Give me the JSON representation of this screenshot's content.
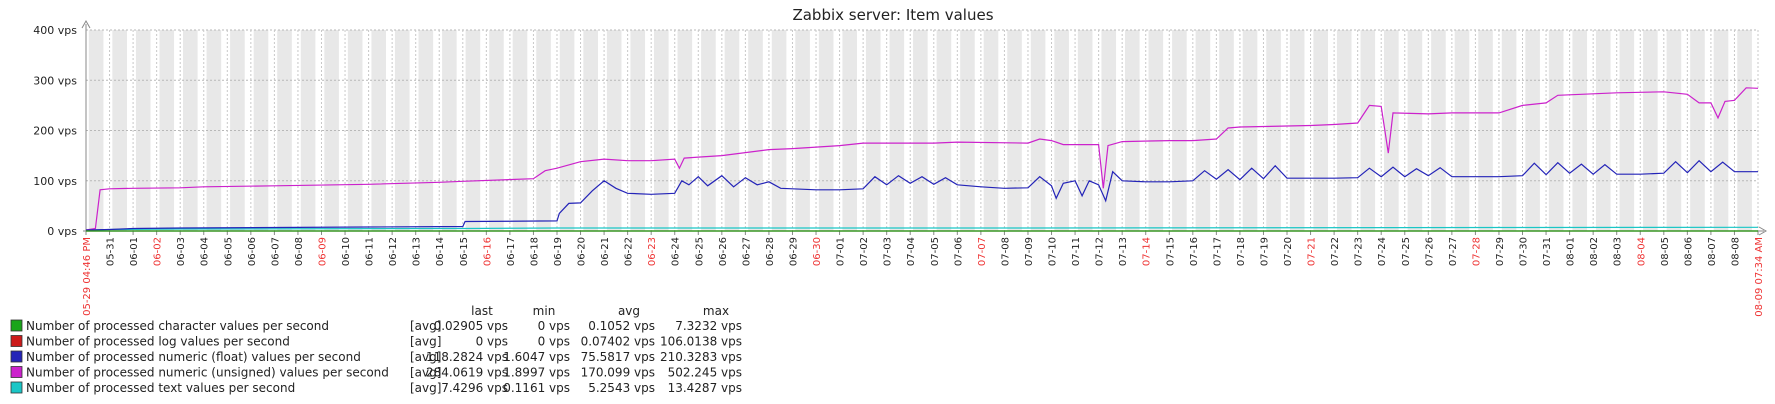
{
  "chart_data": {
    "type": "line",
    "title": "Zabbix server: Item values",
    "y_unit": "vps",
    "ylim": [
      0,
      400
    ],
    "y_ticks": [
      "0 vps",
      "100 vps",
      "200 vps",
      "300 vps",
      "400 vps"
    ],
    "x_start_label": "05-29 04:46 PM",
    "x_end_label": "08-09 07:34 AM",
    "x_day_labels": [
      "05-31",
      "06-01",
      "06-02",
      "06-03",
      "06-04",
      "06-05",
      "06-06",
      "06-07",
      "06-08",
      "06-09",
      "06-10",
      "06-11",
      "06-12",
      "06-13",
      "06-14",
      "06-15",
      "06-16",
      "06-17",
      "06-18",
      "06-19",
      "06-20",
      "06-21",
      "06-22",
      "06-23",
      "06-24",
      "06-25",
      "06-26",
      "06-27",
      "06-28",
      "06-29",
      "06-30",
      "07-01",
      "07-02",
      "07-03",
      "07-04",
      "07-05",
      "07-06",
      "07-07",
      "07-08",
      "07-09",
      "07-10",
      "07-11",
      "07-12",
      "07-13",
      "07-14",
      "07-15",
      "07-16",
      "07-17",
      "07-18",
      "07-19",
      "07-20",
      "07-21",
      "07-22",
      "07-23",
      "07-24",
      "07-25",
      "07-26",
      "07-27",
      "07-28",
      "07-29",
      "07-30",
      "07-31",
      "08-01",
      "08-02",
      "08-03",
      "08-04",
      "08-05",
      "08-06",
      "08-07",
      "08-08"
    ],
    "x_red_labels": [
      "06-02",
      "06-09",
      "06-16",
      "06-23",
      "06-30",
      "07-07",
      "07-14",
      "07-21",
      "07-28",
      "08-04"
    ],
    "stat_headers": [
      "last",
      "min",
      "avg",
      "max"
    ],
    "series": [
      {
        "name": "Number of processed character values per second",
        "func": "[avg]",
        "color": "#1aa51a",
        "last": "0.02905 vps",
        "min": "0 vps",
        "avg": "0.1052 vps",
        "max": "7.3232 vps",
        "points": [
          [
            0,
            0
          ],
          [
            71,
            0
          ]
        ]
      },
      {
        "name": "Number of processed log values per second",
        "func": "[avg]",
        "color": "#cc1a1a",
        "last": "0 vps",
        "min": "0 vps",
        "avg": "0.07402 vps",
        "max": "106.0138 vps",
        "points": [
          [
            0,
            0
          ],
          [
            71,
            0
          ]
        ]
      },
      {
        "name": "Number of processed numeric (float) values per second",
        "func": "[avg]",
        "color": "#2424b8",
        "last": "118.2824 vps",
        "min": "1.6047 vps",
        "avg": "75.5817 vps",
        "max": "210.3283 vps",
        "points": [
          [
            0,
            2
          ],
          [
            1,
            3
          ],
          [
            2,
            5
          ],
          [
            4,
            6
          ],
          [
            8,
            7
          ],
          [
            12,
            8
          ],
          [
            16,
            9
          ],
          [
            16.1,
            19
          ],
          [
            20,
            20
          ],
          [
            20.1,
            35
          ],
          [
            20.5,
            55
          ],
          [
            21,
            56
          ],
          [
            21.5,
            80
          ],
          [
            22,
            100
          ],
          [
            22.5,
            85
          ],
          [
            23,
            75
          ],
          [
            24,
            73
          ],
          [
            25,
            75
          ],
          [
            25.3,
            100
          ],
          [
            25.6,
            92
          ],
          [
            26,
            108
          ],
          [
            26.4,
            90
          ],
          [
            27,
            110
          ],
          [
            27.5,
            88
          ],
          [
            28,
            106
          ],
          [
            28.5,
            92
          ],
          [
            29,
            98
          ],
          [
            29.5,
            85
          ],
          [
            30,
            84
          ],
          [
            31,
            82
          ],
          [
            32,
            82
          ],
          [
            33,
            84
          ],
          [
            33.5,
            108
          ],
          [
            34,
            92
          ],
          [
            34.5,
            110
          ],
          [
            35,
            95
          ],
          [
            35.5,
            108
          ],
          [
            36,
            93
          ],
          [
            36.5,
            106
          ],
          [
            37,
            92
          ],
          [
            38,
            88
          ],
          [
            39,
            85
          ],
          [
            40,
            86
          ],
          [
            40.5,
            108
          ],
          [
            41,
            90
          ],
          [
            41.2,
            65
          ],
          [
            41.5,
            95
          ],
          [
            42,
            100
          ],
          [
            42.3,
            70
          ],
          [
            42.6,
            100
          ],
          [
            43,
            92
          ],
          [
            43.3,
            60
          ],
          [
            43.6,
            118
          ],
          [
            44,
            100
          ],
          [
            45,
            98
          ],
          [
            46,
            98
          ],
          [
            47,
            100
          ],
          [
            47.5,
            120
          ],
          [
            48,
            103
          ],
          [
            48.5,
            122
          ],
          [
            49,
            102
          ],
          [
            49.5,
            125
          ],
          [
            50,
            104
          ],
          [
            50.5,
            130
          ],
          [
            51,
            105
          ],
          [
            52,
            105
          ],
          [
            53,
            105
          ],
          [
            54,
            106
          ],
          [
            54.5,
            125
          ],
          [
            55,
            108
          ],
          [
            55.5,
            127
          ],
          [
            56,
            108
          ],
          [
            56.5,
            124
          ],
          [
            57,
            110
          ],
          [
            57.5,
            126
          ],
          [
            58,
            108
          ],
          [
            59,
            108
          ],
          [
            60,
            108
          ],
          [
            61,
            110
          ],
          [
            61.5,
            135
          ],
          [
            62,
            112
          ],
          [
            62.5,
            136
          ],
          [
            63,
            115
          ],
          [
            63.5,
            133
          ],
          [
            64,
            113
          ],
          [
            64.5,
            132
          ],
          [
            65,
            113
          ],
          [
            66,
            113
          ],
          [
            67,
            115
          ],
          [
            67.5,
            138
          ],
          [
            68,
            116
          ],
          [
            68.5,
            140
          ],
          [
            69,
            118
          ],
          [
            69.5,
            137
          ],
          [
            70,
            118
          ],
          [
            71,
            118
          ]
        ]
      },
      {
        "name": "Number of processed numeric (unsigned) values per second",
        "func": "[avg]",
        "color": "#cc22cc",
        "last": "284.0619 vps",
        "min": "1.8997 vps",
        "avg": "170.099 vps",
        "max": "502.245 vps",
        "points": [
          [
            0,
            2
          ],
          [
            0.4,
            5
          ],
          [
            0.6,
            82
          ],
          [
            1,
            84
          ],
          [
            2,
            85
          ],
          [
            4,
            86
          ],
          [
            5,
            88
          ],
          [
            8,
            90
          ],
          [
            12,
            93
          ],
          [
            15,
            97
          ],
          [
            16,
            99
          ],
          [
            19,
            104
          ],
          [
            19.5,
            120
          ],
          [
            20,
            125
          ],
          [
            21,
            138
          ],
          [
            22,
            143
          ],
          [
            23,
            140
          ],
          [
            24,
            140
          ],
          [
            25,
            143
          ],
          [
            25.2,
            125
          ],
          [
            25.4,
            145
          ],
          [
            26,
            147
          ],
          [
            27,
            150
          ],
          [
            29,
            162
          ],
          [
            30,
            164
          ],
          [
            32,
            170
          ],
          [
            33,
            175
          ],
          [
            36,
            175
          ],
          [
            37,
            177
          ],
          [
            40,
            175
          ],
          [
            40.5,
            183
          ],
          [
            41,
            180
          ],
          [
            41.5,
            172
          ],
          [
            43,
            172
          ],
          [
            43.2,
            85
          ],
          [
            43.4,
            170
          ],
          [
            44,
            178
          ],
          [
            46,
            180
          ],
          [
            47,
            180
          ],
          [
            48,
            183
          ],
          [
            48.5,
            205
          ],
          [
            49,
            207
          ],
          [
            51,
            209
          ],
          [
            52,
            210
          ],
          [
            53,
            212
          ],
          [
            54,
            215
          ],
          [
            54.5,
            250
          ],
          [
            55,
            248
          ],
          [
            55.3,
            155
          ],
          [
            55.5,
            235
          ],
          [
            57,
            233
          ],
          [
            58,
            235
          ],
          [
            59,
            235
          ],
          [
            60,
            235
          ],
          [
            61,
            250
          ],
          [
            62,
            255
          ],
          [
            62.5,
            270
          ],
          [
            64,
            273
          ],
          [
            65,
            275
          ],
          [
            67,
            277
          ],
          [
            68,
            272
          ],
          [
            68.5,
            255
          ],
          [
            69,
            255
          ],
          [
            69.3,
            225
          ],
          [
            69.6,
            258
          ],
          [
            70,
            260
          ],
          [
            70.5,
            285
          ],
          [
            71,
            284
          ]
        ]
      },
      {
        "name": "Number of processed text values per second",
        "func": "[avg]",
        "color": "#1ac6c6",
        "last": "7.4296 vps",
        "min": "0.1161 vps",
        "avg": "5.2543 vps",
        "max": "13.4287 vps",
        "points": [
          [
            0,
            1
          ],
          [
            1,
            3
          ],
          [
            4,
            4
          ],
          [
            16,
            5
          ],
          [
            20,
            6
          ],
          [
            40,
            6
          ],
          [
            60,
            7
          ],
          [
            71,
            7.4
          ]
        ]
      }
    ]
  }
}
